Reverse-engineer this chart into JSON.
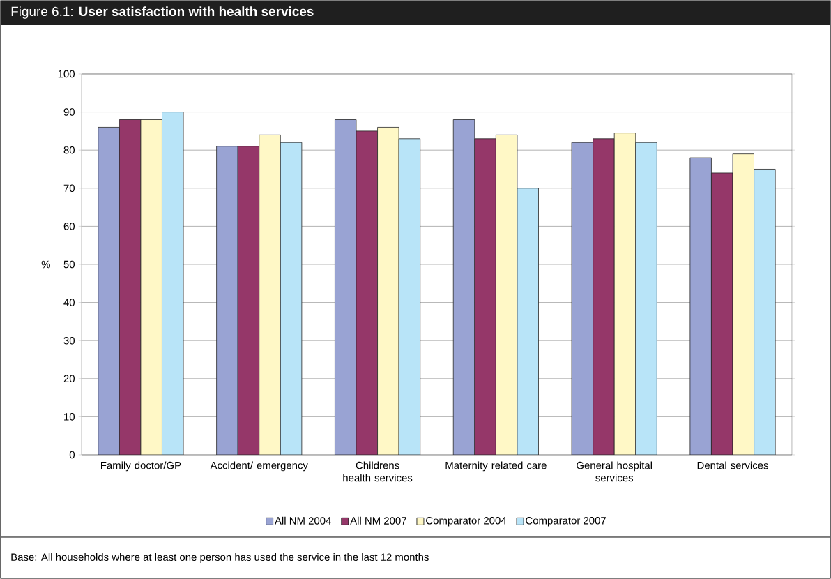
{
  "chart_data": {
    "type": "bar",
    "title": "Figure 6.1: **User satisfaction with health services**",
    "ylabel": "%",
    "categories": [
      "Family doctor/GP",
      "Accident/ emergency",
      "Childrens health services",
      "Maternity related care",
      "General hospital services",
      "Dental services"
    ],
    "series": [
      {
        "name": "All NM 2004",
        "color": "#99a3d3",
        "values": [
          86,
          81,
          88,
          88,
          82,
          78
        ]
      },
      {
        "name": "All NM 2007",
        "color": "#953769",
        "values": [
          88,
          81,
          85,
          83,
          83,
          74
        ]
      },
      {
        "name": "Comparator 2004",
        "color": "#fff8c6",
        "values": [
          88,
          84,
          86,
          84,
          84.5,
          79
        ]
      },
      {
        "name": "Comparator 2007",
        "color": "#b8e4f8",
        "values": [
          90,
          82,
          83,
          70,
          82,
          75
        ]
      }
    ],
    "ylim": [
      0,
      100
    ],
    "yticks": [
      0,
      10,
      20,
      30,
      40,
      50,
      60,
      70,
      80,
      90,
      100
    ],
    "grid": "y",
    "legend": "bottom",
    "annotations": [
      "Base: All households where at least one person has used the service in the last 12 months"
    ]
  }
}
